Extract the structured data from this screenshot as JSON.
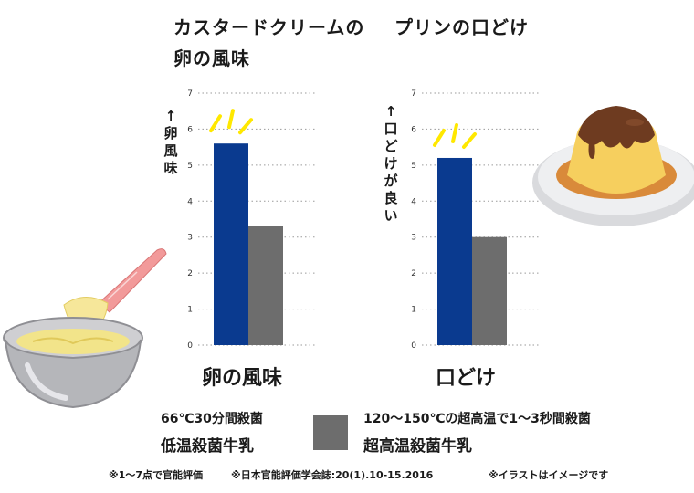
{
  "colors": {
    "low_temp": "#0a3a8f",
    "ultra_high_temp": "#6d6d6d",
    "grid": "#9a9a9a",
    "burst": "#ffe800"
  },
  "chart_data": [
    {
      "type": "bar",
      "title_lines": [
        "カスタードクリームの",
        "卵の風味"
      ],
      "ylabel": "↑卵風味",
      "categories": [
        "卵の風味"
      ],
      "ylim": [
        0,
        7
      ],
      "yticks": [
        "0",
        "1",
        "2",
        "3",
        "4",
        "5",
        "6",
        "7"
      ],
      "grid": true,
      "series": [
        {
          "name": "低温殺菌牛乳",
          "values": [
            5.6
          ]
        },
        {
          "name": "超高温殺菌牛乳",
          "values": [
            3.3
          ]
        }
      ]
    },
    {
      "type": "bar",
      "title_lines": [
        "プリンの口どけ"
      ],
      "ylabel": "↑口どけが良い",
      "categories": [
        "口どけ"
      ],
      "ylim": [
        0,
        7
      ],
      "yticks": [
        "0",
        "1",
        "2",
        "3",
        "4",
        "5",
        "6",
        "7"
      ],
      "grid": true,
      "series": [
        {
          "name": "低温殺菌牛乳",
          "values": [
            5.2
          ]
        },
        {
          "name": "超高温殺菌牛乳",
          "values": [
            3.0
          ]
        }
      ]
    }
  ],
  "legend": {
    "low_temp": {
      "line1": "66℃30分間殺菌",
      "line2": "低温殺菌牛乳"
    },
    "ultra_high_temp": {
      "line1": "120〜150℃の超高温で1〜3秒間殺菌",
      "line2": "超高温殺菌牛乳"
    }
  },
  "notes": [
    "※1〜7点で官能評価",
    "※日本官能評価学会誌:20(1).10-15.2016",
    "※イラストはイメージです"
  ],
  "illustrations": {
    "left": "mixing-bowl-with-spatula",
    "right": "pudding-on-plate"
  }
}
